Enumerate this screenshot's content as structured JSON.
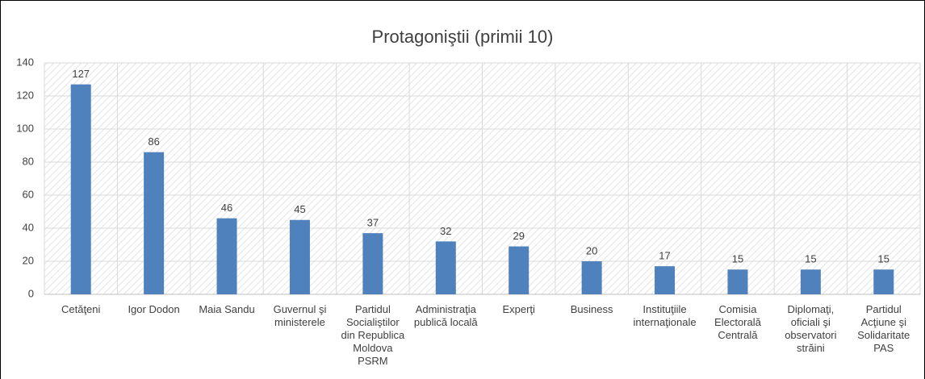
{
  "chart_data": {
    "type": "bar",
    "title": "Protagoniştii (primii 10)",
    "categories": [
      "Cetăţeni",
      "Igor Dodon",
      "Maia Sandu",
      "Guvernul şi ministerele",
      "Partidul Socialiştilor din Republica Moldova PSRM",
      "Administraţia publică locală",
      "Experţi",
      "Business",
      "Instituţiile internaţionale",
      "Comisia Electorală Centrală",
      "Diplomaţi, oficiali şi observatori străini",
      "Partidul Acţiune şi Solidaritate PAS"
    ],
    "values": [
      127,
      86,
      46,
      45,
      37,
      32,
      29,
      20,
      17,
      15,
      15,
      15
    ],
    "color": "#4f81bd",
    "ylim": [
      0,
      140
    ],
    "yticks": [
      0,
      20,
      40,
      60,
      80,
      100,
      120,
      140
    ],
    "grid": true
  }
}
